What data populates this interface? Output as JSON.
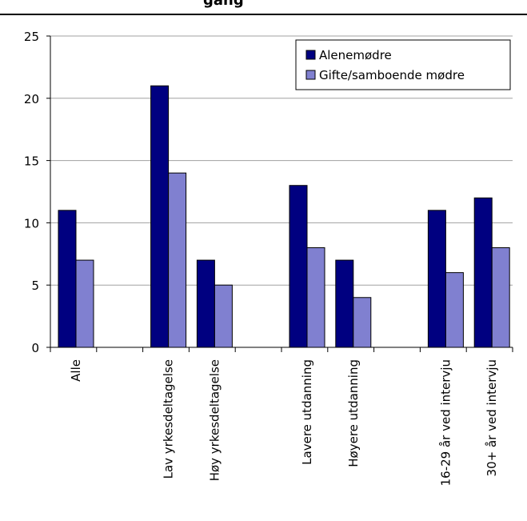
{
  "chart_data": {
    "type": "bar",
    "title": "gang",
    "title_note": "only the lower portion of the title text is visible at the top edge",
    "categories": [
      "Alle",
      "",
      "Lav yrkesdeltagelse",
      "Høy yrkesdeltagelse",
      "",
      "Lavere utdanning",
      "Høyere utdanning",
      "",
      "16-29 år ved intervju",
      "30+ år ved intervju"
    ],
    "series": [
      {
        "name": "Alenemødre",
        "color": "#000080",
        "values": [
          11,
          null,
          21,
          7,
          null,
          13,
          7,
          null,
          11,
          12
        ]
      },
      {
        "name": "Gifte/samboende mødre",
        "color": "#8080d0",
        "values": [
          7,
          null,
          14,
          5,
          null,
          8,
          4,
          null,
          6,
          8
        ]
      }
    ],
    "ylim": [
      0,
      25
    ],
    "yticks": [
      0,
      5,
      10,
      15,
      20,
      25
    ],
    "grid": true,
    "legend": "top-right",
    "xlabel": "",
    "ylabel": ""
  }
}
